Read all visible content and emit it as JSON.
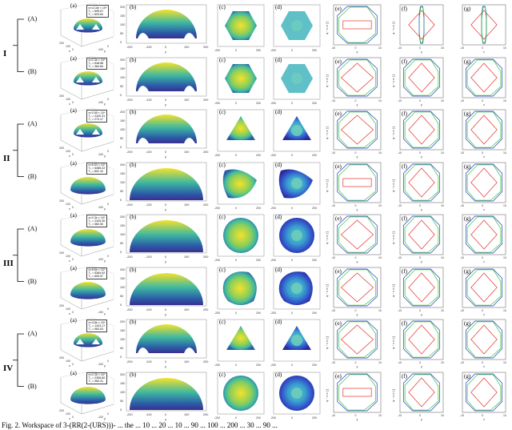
{
  "groups": [
    {
      "label": "I",
      "rows": [
        {
          "label": "(A)",
          "legend": [
            "σ=4.13e × 10⁴",
            "T₀ = 695.67",
            "T₁ = 603.64"
          ]
        },
        {
          "label": "(B)",
          "legend": [
            "σ=2.3e × 10⁴",
            "T₀ = 648.86",
            "T₁ = 364.84"
          ]
        }
      ]
    },
    {
      "label": "II",
      "rows": [
        {
          "label": "(A)",
          "legend": [
            "σ=2.65 × 10⁴",
            "T₀ = 2420.31",
            "T₁ = 273.17"
          ]
        },
        {
          "label": "(B)",
          "legend": [
            "σ=6.54 × 10⁴",
            "T₀ = 6485.22",
            "T₁ = 802.10"
          ]
        }
      ]
    },
    {
      "label": "III",
      "rows": [
        {
          "label": "(A)",
          "legend": [
            "σ=2.3e × 10⁴",
            "T₀ = 2425.30",
            "T₁ = 660.50"
          ]
        },
        {
          "label": "(B)",
          "legend": [
            "σ=5.6e × 10⁴",
            "T₀ = 5364.92",
            "T₁ = 605.97"
          ]
        }
      ]
    },
    {
      "label": "IV",
      "rows": [
        {
          "label": "(A)",
          "legend": [
            "σ=3.8e × 10⁴",
            "T₀ = 1423.17",
            "T₁ = 963.03"
          ]
        },
        {
          "label": "(B)",
          "legend": [
            "σ=2.35 × 10⁴",
            "T₀ = 2306.80",
            "T₁ = 960.31"
          ]
        }
      ]
    }
  ],
  "panel_letters": [
    "(a)",
    "(b)",
    "(c)",
    "(d)",
    "(e)",
    "(f)",
    "(g)"
  ],
  "axis": {
    "x": "x",
    "y": "y",
    "z": "z",
    "e_ylabel": "φ − ν π [·]",
    "f_xlabel": "y",
    "g_xlabel": "x"
  },
  "ticks": {
    "b_x": [
      "-200",
      "-100",
      "0",
      "100",
      "200"
    ],
    "b_y": [
      "0",
      "50",
      "100",
      "150",
      "200"
    ],
    "e_x": [
      "-10",
      "0",
      "10"
    ],
    "f_x": [
      "-10",
      "0",
      "10"
    ]
  },
  "colors": {
    "red": "#e5302a",
    "blue": "#1f3fbf",
    "green": "#35c23a",
    "dome_top": "#f4e22a",
    "dome_mid": "#3fb8a0",
    "dome_low": "#2b5ca8",
    "dome_base": "#3b2f8e"
  },
  "caption": "Fig. 2. Workspace of 3-(RR(2-(URS)))- ... the ... 10 ... 20 ... 10 ... 90 ... 100 ... 200 ... 30 ... 90 ..."
}
